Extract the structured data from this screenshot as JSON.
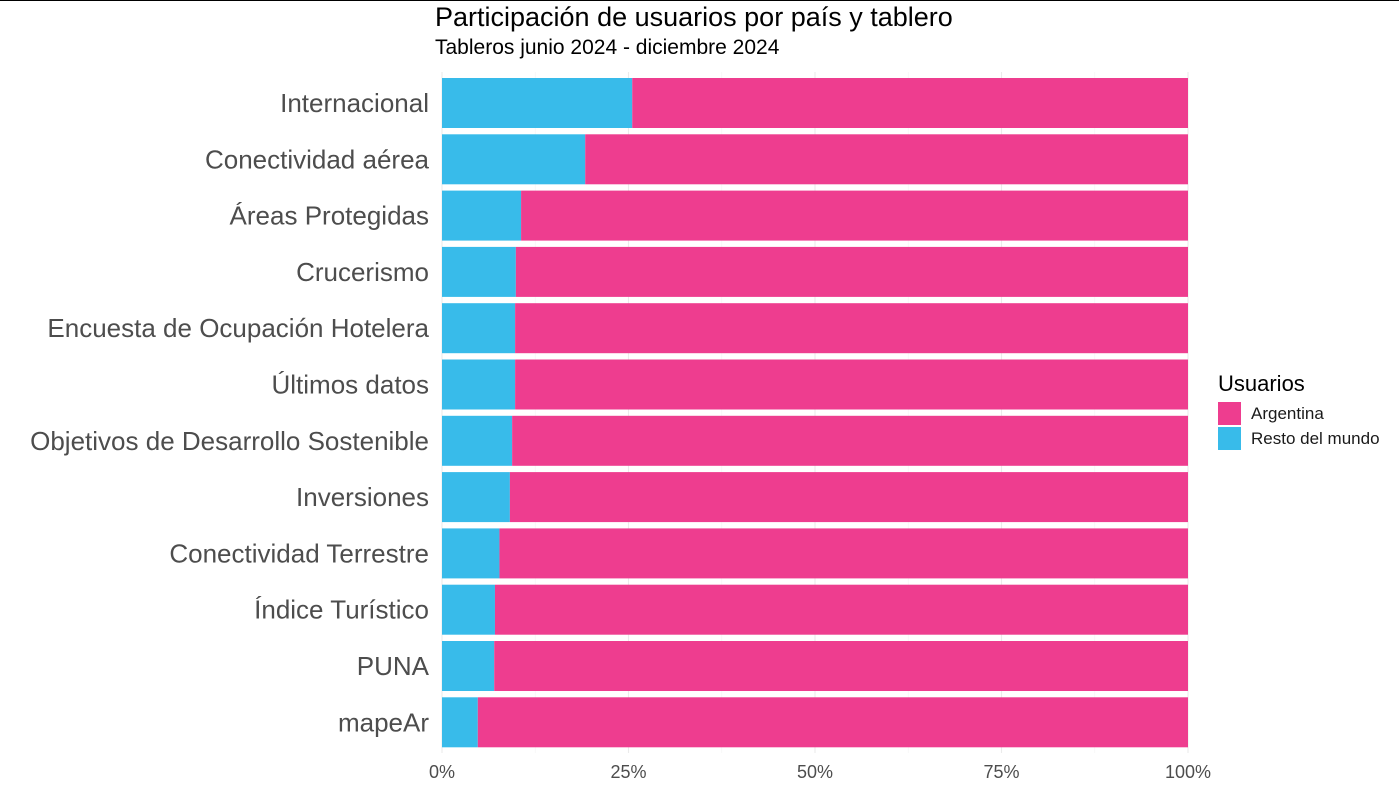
{
  "chart_data": {
    "type": "bar",
    "orientation": "horizontal",
    "stacked": true,
    "title": "Participación de usuarios por país y tablero",
    "subtitle": "Tableros junio 2024 - diciembre 2024",
    "xlabel": "",
    "ylabel": "",
    "xlim": [
      0,
      100
    ],
    "x_ticks": [
      "0%",
      "25%",
      "50%",
      "75%",
      "100%"
    ],
    "grid": true,
    "categories": [
      "Internacional",
      "Conectividad aérea",
      "Áreas Protegidas",
      "Crucerismo",
      "Encuesta de Ocupación Hotelera",
      "Últimos datos",
      "Objetivos de Desarrollo Sostenible",
      "Inversiones",
      "Conectividad Terrestre",
      "Índice Turístico",
      "PUNA",
      "mapeAr"
    ],
    "series": [
      {
        "name": "Resto del mundo",
        "color": "#38BBEA",
        "values": [
          25.5,
          19.2,
          10.6,
          9.9,
          9.8,
          9.8,
          9.4,
          9.1,
          7.7,
          7.1,
          7.0,
          4.8
        ]
      },
      {
        "name": "Argentina",
        "color": "#EE3D8F",
        "values": [
          74.5,
          80.8,
          89.4,
          90.1,
          90.2,
          90.2,
          90.6,
          90.9,
          92.3,
          92.9,
          93.0,
          95.2
        ]
      }
    ],
    "legend": {
      "title": "Usuarios",
      "position": "right",
      "order": [
        "Argentina",
        "Resto del mundo"
      ]
    }
  }
}
